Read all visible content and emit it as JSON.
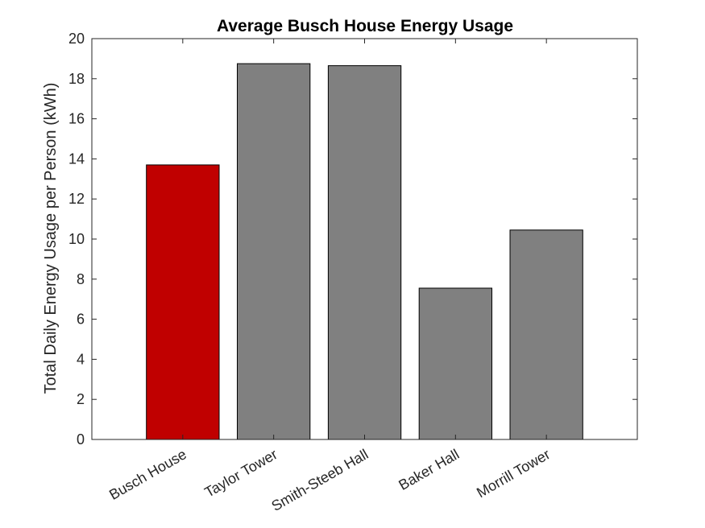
{
  "chart_data": {
    "type": "bar",
    "title": "Average Busch House Energy Usage",
    "xlabel": "",
    "ylabel": "Total Daily Energy Usage per Person (kWh)",
    "categories": [
      "Busch House",
      "Taylor Tower",
      "Smith-Steeb Hall",
      "Baker Hall",
      "Morrill Tower"
    ],
    "values": [
      13.7,
      18.75,
      18.65,
      7.55,
      10.45
    ],
    "bar_colors": [
      "#c00000",
      "#808080",
      "#808080",
      "#808080",
      "#808080"
    ],
    "ylim": [
      0,
      20
    ],
    "yticks": [
      0,
      2,
      4,
      6,
      8,
      10,
      12,
      14,
      16,
      18,
      20
    ],
    "grid": false,
    "legend": "none"
  }
}
